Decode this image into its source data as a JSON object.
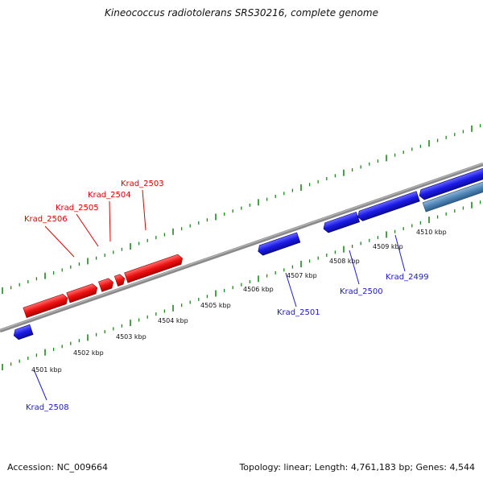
{
  "title": "Kineococcus radiotolerans SRS30216, complete genome",
  "footer": {
    "accession": "Accession: NC_009664",
    "summary": "Topology: linear; Length: 4,761,183 bp; Genes: 4,544"
  },
  "colors": {
    "forward_gene": "#ee1111",
    "reverse_gene": "#1a1ae6",
    "other_gene": "#4f86b8",
    "tick": "#1a8a1a",
    "backbone": "#8a8a8a"
  },
  "scale_labels": [
    "4501 kbp",
    "4502 kbp",
    "4503 kbp",
    "4504 kbp",
    "4505 kbp",
    "4506 kbp",
    "4507 kbp",
    "4508 kbp",
    "4509 kbp",
    "4510 kbp"
  ],
  "forward_labels": [
    "Krad_2506",
    "Krad_2505",
    "Krad_2504",
    "Krad_2503"
  ],
  "reverse_labels": [
    "Krad_2508",
    "Krad_2501",
    "Krad_2500",
    "Krad_2499"
  ]
}
